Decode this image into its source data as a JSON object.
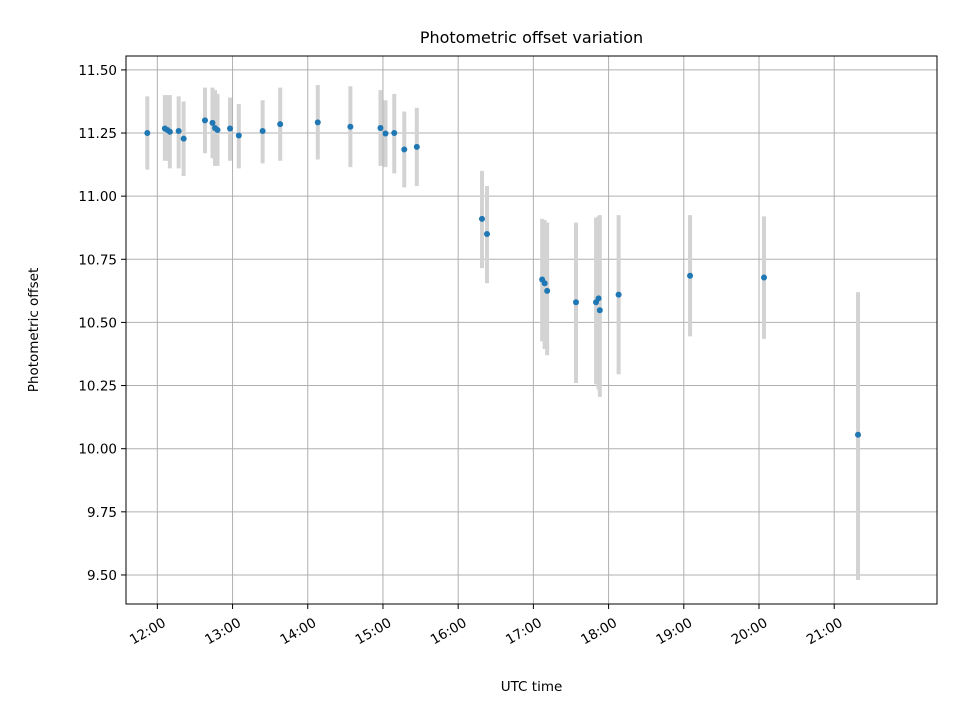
{
  "chart_data": {
    "type": "scatter",
    "title": "Photometric offset variation",
    "xlabel": "UTC time",
    "ylabel": "Photometric offset",
    "x_unit": "hours UTC",
    "xlim": [
      "11:35",
      "22:22"
    ],
    "ylim": [
      9.385,
      11.555
    ],
    "x_ticks": [
      {
        "t": "12:00",
        "label": "12:00"
      },
      {
        "t": "13:00",
        "label": "13:00"
      },
      {
        "t": "14:00",
        "label": "14:00"
      },
      {
        "t": "15:00",
        "label": "15:00"
      },
      {
        "t": "16:00",
        "label": "16:00"
      },
      {
        "t": "17:00",
        "label": "17:00"
      },
      {
        "t": "18:00",
        "label": "18:00"
      },
      {
        "t": "19:00",
        "label": "19:00"
      },
      {
        "t": "20:00",
        "label": "20:00"
      },
      {
        "t": "21:00",
        "label": "21:00"
      }
    ],
    "y_ticks": [
      {
        "v": 9.5,
        "label": "9.50"
      },
      {
        "v": 9.75,
        "label": "9.75"
      },
      {
        "v": 10.0,
        "label": "10.00"
      },
      {
        "v": 10.25,
        "label": "10.25"
      },
      {
        "v": 10.5,
        "label": "10.50"
      },
      {
        "v": 10.75,
        "label": "10.75"
      },
      {
        "v": 11.0,
        "label": "11.00"
      },
      {
        "v": 11.25,
        "label": "11.25"
      },
      {
        "v": 11.5,
        "label": "11.50"
      }
    ],
    "grid": true,
    "colors": {
      "marker": "#1f77b4",
      "errorbar": "#d3d3d3",
      "grid": "#b0b0b0"
    },
    "points": [
      {
        "t": "11:52",
        "y": 11.25,
        "lo": 11.105,
        "hi": 11.395
      },
      {
        "t": "12:06",
        "y": 11.268,
        "lo": 11.14,
        "hi": 11.4
      },
      {
        "t": "12:08",
        "y": 11.262,
        "lo": 11.14,
        "hi": 11.4
      },
      {
        "t": "12:10",
        "y": 11.255,
        "lo": 11.11,
        "hi": 11.4
      },
      {
        "t": "12:17",
        "y": 11.258,
        "lo": 11.11,
        "hi": 11.395
      },
      {
        "t": "12:21",
        "y": 11.228,
        "lo": 11.08,
        "hi": 11.375
      },
      {
        "t": "12:38",
        "y": 11.3,
        "lo": 11.17,
        "hi": 11.43
      },
      {
        "t": "12:44",
        "y": 11.29,
        "lo": 11.15,
        "hi": 11.43
      },
      {
        "t": "12:46",
        "y": 11.27,
        "lo": 11.12,
        "hi": 11.42
      },
      {
        "t": "12:48",
        "y": 11.262,
        "lo": 11.12,
        "hi": 11.405
      },
      {
        "t": "12:58",
        "y": 11.268,
        "lo": 11.14,
        "hi": 11.39
      },
      {
        "t": "13:05",
        "y": 11.24,
        "lo": 11.11,
        "hi": 11.365
      },
      {
        "t": "13:24",
        "y": 11.258,
        "lo": 11.13,
        "hi": 11.38
      },
      {
        "t": "13:38",
        "y": 11.285,
        "lo": 11.14,
        "hi": 11.43
      },
      {
        "t": "14:08",
        "y": 11.292,
        "lo": 11.145,
        "hi": 11.44
      },
      {
        "t": "14:34",
        "y": 11.275,
        "lo": 11.115,
        "hi": 11.435
      },
      {
        "t": "14:58",
        "y": 11.27,
        "lo": 11.12,
        "hi": 11.42
      },
      {
        "t": "15:02",
        "y": 11.248,
        "lo": 11.115,
        "hi": 11.38
      },
      {
        "t": "15:09",
        "y": 11.25,
        "lo": 11.09,
        "hi": 11.405
      },
      {
        "t": "15:17",
        "y": 11.185,
        "lo": 11.035,
        "hi": 11.335
      },
      {
        "t": "15:27",
        "y": 11.195,
        "lo": 11.04,
        "hi": 11.35
      },
      {
        "t": "16:19",
        "y": 10.91,
        "lo": 10.715,
        "hi": 11.1
      },
      {
        "t": "16:23",
        "y": 10.85,
        "lo": 10.655,
        "hi": 11.04
      },
      {
        "t": "17:07",
        "y": 10.67,
        "lo": 10.425,
        "hi": 10.91
      },
      {
        "t": "17:09",
        "y": 10.655,
        "lo": 10.395,
        "hi": 10.905
      },
      {
        "t": "17:11",
        "y": 10.625,
        "lo": 10.37,
        "hi": 10.895
      },
      {
        "t": "17:34",
        "y": 10.58,
        "lo": 10.26,
        "hi": 10.895
      },
      {
        "t": "17:50",
        "y": 10.58,
        "lo": 10.255,
        "hi": 10.915
      },
      {
        "t": "17:52",
        "y": 10.595,
        "lo": 10.235,
        "hi": 10.92
      },
      {
        "t": "17:53",
        "y": 10.548,
        "lo": 10.205,
        "hi": 10.925
      },
      {
        "t": "18:08",
        "y": 10.61,
        "lo": 10.295,
        "hi": 10.925
      },
      {
        "t": "19:05",
        "y": 10.685,
        "lo": 10.445,
        "hi": 10.925
      },
      {
        "t": "20:04",
        "y": 10.678,
        "lo": 10.435,
        "hi": 10.92
      },
      {
        "t": "21:19",
        "y": 10.055,
        "lo": 9.48,
        "hi": 10.62
      }
    ]
  }
}
